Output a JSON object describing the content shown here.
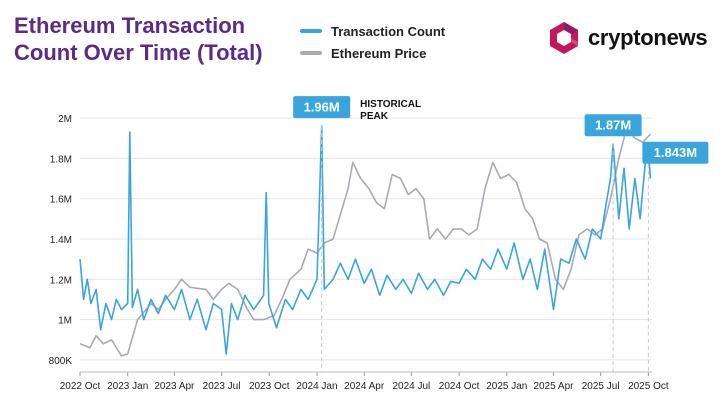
{
  "title": "Ethereum Transaction Count Over Time (Total)",
  "legend": {
    "transaction_count": "Transaction Count",
    "ethereum_price": "Ethereum Price"
  },
  "brand": {
    "name": "cryptonews"
  },
  "colors": {
    "title": "#5b2c83",
    "transaction_count": "#3aa5dc",
    "ethereum_price": "#a9a9b4",
    "callout": "#3aa5dc",
    "logo": "#c2185b"
  },
  "annotations": [
    {
      "text": "1.96M",
      "x": "2024-01-10",
      "y": 1960000
    },
    {
      "text": "1.87M",
      "x": "2025-07-25",
      "y": 1870000
    },
    {
      "text": "1.843M",
      "x": "2025-10-01",
      "y": 1843000
    }
  ],
  "peak_note": {
    "line1": "HISTORICAL",
    "line2": "PEAK"
  },
  "chart_data": {
    "type": "line",
    "title": "Ethereum Transaction Count Over Time (Total)",
    "y_tick_labels": [
      "800K",
      "1M",
      "1.2M",
      "1.4M",
      "1.6M",
      "1.8M",
      "2M"
    ],
    "y_ticks": [
      800000,
      1000000,
      1200000,
      1400000,
      1600000,
      1800000,
      2000000
    ],
    "ylim": [
      740000,
      2030000
    ],
    "x_tick_labels": [
      "2022 Oct",
      "2023 Jan",
      "2023 Apr",
      "2023 Jul",
      "2023 Oct",
      "2024 Jan",
      "2024 Apr",
      "2024 Jul",
      "2024 Oct",
      "2025 Jan",
      "2025 Apr",
      "2025 Jul",
      "2025 Oct"
    ],
    "x_ticks": [
      "2022-10-01",
      "2023-01-01",
      "2023-04-01",
      "2023-07-01",
      "2023-10-01",
      "2024-01-01",
      "2024-04-01",
      "2024-07-01",
      "2024-10-01",
      "2025-01-01",
      "2025-04-01",
      "2025-07-01",
      "2025-10-01"
    ],
    "xlim": [
      "2022-10-01",
      "2025-10-08"
    ],
    "grid": "horizontal",
    "series": [
      {
        "name": "Transaction Count",
        "values": [
          [
            "2022-10-01",
            1300000
          ],
          [
            "2022-10-08",
            1100000
          ],
          [
            "2022-10-15",
            1200000
          ],
          [
            "2022-10-22",
            1080000
          ],
          [
            "2022-11-01",
            1150000
          ],
          [
            "2022-11-10",
            950000
          ],
          [
            "2022-11-20",
            1080000
          ],
          [
            "2022-12-01",
            1000000
          ],
          [
            "2022-12-10",
            1100000
          ],
          [
            "2022-12-20",
            1050000
          ],
          [
            "2023-01-01",
            1080000
          ],
          [
            "2023-01-05",
            1930000
          ],
          [
            "2023-01-10",
            1060000
          ],
          [
            "2023-01-20",
            1150000
          ],
          [
            "2023-02-01",
            1000000
          ],
          [
            "2023-02-15",
            1100000
          ],
          [
            "2023-03-01",
            1030000
          ],
          [
            "2023-03-15",
            1120000
          ],
          [
            "2023-04-01",
            1050000
          ],
          [
            "2023-04-15",
            1150000
          ],
          [
            "2023-05-01",
            1000000
          ],
          [
            "2023-05-15",
            1100000
          ],
          [
            "2023-06-01",
            950000
          ],
          [
            "2023-06-15",
            1080000
          ],
          [
            "2023-07-01",
            1050000
          ],
          [
            "2023-07-10",
            830000
          ],
          [
            "2023-07-20",
            1080000
          ],
          [
            "2023-08-01",
            1000000
          ],
          [
            "2023-08-15",
            1120000
          ],
          [
            "2023-09-01",
            1050000
          ],
          [
            "2023-09-20",
            1120000
          ],
          [
            "2023-09-25",
            1630000
          ],
          [
            "2023-09-30",
            1080000
          ],
          [
            "2023-10-15",
            960000
          ],
          [
            "2023-11-01",
            1100000
          ],
          [
            "2023-11-15",
            1050000
          ],
          [
            "2023-12-01",
            1150000
          ],
          [
            "2023-12-15",
            1100000
          ],
          [
            "2024-01-01",
            1200000
          ],
          [
            "2024-01-10",
            1960000
          ],
          [
            "2024-01-15",
            1150000
          ],
          [
            "2024-02-01",
            1200000
          ],
          [
            "2024-02-15",
            1280000
          ],
          [
            "2024-03-01",
            1200000
          ],
          [
            "2024-03-15",
            1300000
          ],
          [
            "2024-04-01",
            1180000
          ],
          [
            "2024-04-15",
            1250000
          ],
          [
            "2024-05-01",
            1120000
          ],
          [
            "2024-05-15",
            1220000
          ],
          [
            "2024-06-01",
            1150000
          ],
          [
            "2024-06-15",
            1200000
          ],
          [
            "2024-07-01",
            1130000
          ],
          [
            "2024-07-15",
            1230000
          ],
          [
            "2024-08-01",
            1150000
          ],
          [
            "2024-08-15",
            1200000
          ],
          [
            "2024-09-01",
            1120000
          ],
          [
            "2024-09-15",
            1190000
          ],
          [
            "2024-10-01",
            1180000
          ],
          [
            "2024-10-15",
            1250000
          ],
          [
            "2024-11-01",
            1200000
          ],
          [
            "2024-11-15",
            1300000
          ],
          [
            "2024-12-01",
            1250000
          ],
          [
            "2024-12-15",
            1350000
          ],
          [
            "2025-01-01",
            1250000
          ],
          [
            "2025-01-15",
            1380000
          ],
          [
            "2025-02-01",
            1200000
          ],
          [
            "2025-02-15",
            1300000
          ],
          [
            "2025-03-01",
            1150000
          ],
          [
            "2025-03-15",
            1350000
          ],
          [
            "2025-04-01",
            1050000
          ],
          [
            "2025-04-15",
            1300000
          ],
          [
            "2025-05-01",
            1280000
          ],
          [
            "2025-05-15",
            1400000
          ],
          [
            "2025-06-01",
            1300000
          ],
          [
            "2025-06-15",
            1450000
          ],
          [
            "2025-07-01",
            1400000
          ],
          [
            "2025-07-10",
            1550000
          ],
          [
            "2025-07-20",
            1700000
          ],
          [
            "2025-07-25",
            1870000
          ],
          [
            "2025-08-05",
            1500000
          ],
          [
            "2025-08-15",
            1750000
          ],
          [
            "2025-08-25",
            1450000
          ],
          [
            "2025-09-05",
            1700000
          ],
          [
            "2025-09-15",
            1500000
          ],
          [
            "2025-09-25",
            1780000
          ],
          [
            "2025-10-01",
            1843000
          ],
          [
            "2025-10-05",
            1700000
          ]
        ]
      },
      {
        "name": "Ethereum Price",
        "values": [
          [
            "2022-10-01",
            880000
          ],
          [
            "2022-10-20",
            860000
          ],
          [
            "2022-11-01",
            920000
          ],
          [
            "2022-11-15",
            880000
          ],
          [
            "2022-12-01",
            900000
          ],
          [
            "2022-12-20",
            820000
          ],
          [
            "2023-01-01",
            830000
          ],
          [
            "2023-01-20",
            1000000
          ],
          [
            "2023-02-15",
            1080000
          ],
          [
            "2023-03-01",
            1050000
          ],
          [
            "2023-03-15",
            1100000
          ],
          [
            "2023-04-01",
            1150000
          ],
          [
            "2023-04-15",
            1200000
          ],
          [
            "2023-05-01",
            1160000
          ],
          [
            "2023-06-01",
            1150000
          ],
          [
            "2023-06-15",
            1100000
          ],
          [
            "2023-07-01",
            1150000
          ],
          [
            "2023-07-15",
            1180000
          ],
          [
            "2023-08-01",
            1150000
          ],
          [
            "2023-08-20",
            1050000
          ],
          [
            "2023-09-01",
            1000000
          ],
          [
            "2023-09-20",
            1000000
          ],
          [
            "2023-10-10",
            1020000
          ],
          [
            "2023-10-25",
            1100000
          ],
          [
            "2023-11-10",
            1200000
          ],
          [
            "2023-12-01",
            1250000
          ],
          [
            "2023-12-15",
            1350000
          ],
          [
            "2024-01-01",
            1330000
          ],
          [
            "2024-01-15",
            1380000
          ],
          [
            "2024-02-01",
            1400000
          ],
          [
            "2024-02-15",
            1520000
          ],
          [
            "2024-03-01",
            1650000
          ],
          [
            "2024-03-10",
            1780000
          ],
          [
            "2024-03-25",
            1700000
          ],
          [
            "2024-04-10",
            1650000
          ],
          [
            "2024-04-25",
            1580000
          ],
          [
            "2024-05-10",
            1550000
          ],
          [
            "2024-05-25",
            1720000
          ],
          [
            "2024-06-10",
            1700000
          ],
          [
            "2024-06-25",
            1620000
          ],
          [
            "2024-07-10",
            1650000
          ],
          [
            "2024-07-25",
            1600000
          ],
          [
            "2024-08-05",
            1400000
          ],
          [
            "2024-08-20",
            1450000
          ],
          [
            "2024-09-05",
            1400000
          ],
          [
            "2024-09-20",
            1450000
          ],
          [
            "2024-10-05",
            1450000
          ],
          [
            "2024-10-20",
            1420000
          ],
          [
            "2024-11-05",
            1450000
          ],
          [
            "2024-11-20",
            1650000
          ],
          [
            "2024-12-05",
            1780000
          ],
          [
            "2024-12-20",
            1700000
          ],
          [
            "2025-01-05",
            1720000
          ],
          [
            "2025-01-20",
            1680000
          ],
          [
            "2025-02-05",
            1550000
          ],
          [
            "2025-02-20",
            1500000
          ],
          [
            "2025-03-05",
            1400000
          ],
          [
            "2025-03-20",
            1380000
          ],
          [
            "2025-04-05",
            1200000
          ],
          [
            "2025-04-20",
            1150000
          ],
          [
            "2025-05-05",
            1250000
          ],
          [
            "2025-05-20",
            1420000
          ],
          [
            "2025-06-05",
            1450000
          ],
          [
            "2025-06-20",
            1420000
          ],
          [
            "2025-07-05",
            1450000
          ],
          [
            "2025-07-20",
            1600000
          ],
          [
            "2025-08-05",
            1800000
          ],
          [
            "2025-08-20",
            1950000
          ],
          [
            "2025-09-05",
            1900000
          ],
          [
            "2025-09-20",
            1880000
          ],
          [
            "2025-10-05",
            1920000
          ]
        ]
      }
    ]
  }
}
